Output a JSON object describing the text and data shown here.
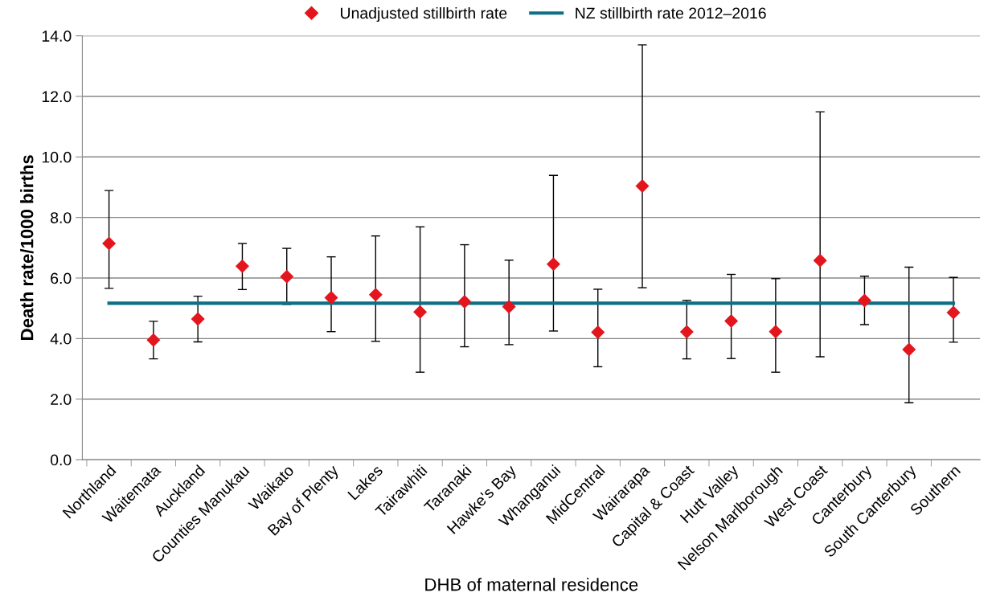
{
  "chart_data": {
    "type": "scatter",
    "xlabel": "DHB of maternal residence",
    "ylabel": "Death rate/1000 births",
    "categories": [
      "Northland",
      "Waitemata",
      "Auckland",
      "Counties Manukau",
      "Waikato",
      "Bay of Plenty",
      "Lakes",
      "Tairawhiti",
      "Taranaki",
      "Hawke's Bay",
      "Whanganui",
      "MidCentral",
      "Wairarapa",
      "Capital & Coast",
      "Hutt Valley",
      "Nelson Marlborough",
      "West Coast",
      "Canterbury",
      "South Canterbury",
      "Southern"
    ],
    "series": [
      {
        "name": "Unadjusted stillbirth rate",
        "color": "#e3161e",
        "marker": "diamond",
        "values": [
          7.14,
          3.95,
          4.65,
          6.39,
          6.05,
          5.35,
          5.45,
          4.88,
          5.22,
          5.05,
          6.46,
          4.21,
          9.04,
          4.22,
          4.58,
          4.23,
          6.58,
          5.26,
          3.64,
          4.86
        ],
        "errors": [
          [
            5.66,
            8.89
          ],
          [
            3.33,
            4.57
          ],
          [
            3.89,
            5.4
          ],
          [
            5.62,
            7.14
          ],
          [
            5.13,
            6.98
          ],
          [
            4.23,
            6.7
          ],
          [
            3.91,
            7.39
          ],
          [
            2.89,
            7.69
          ],
          [
            3.73,
            7.1
          ],
          [
            3.8,
            6.59
          ],
          [
            4.25,
            9.39
          ],
          [
            3.07,
            5.63
          ],
          [
            5.68,
            13.7
          ],
          [
            3.33,
            5.26
          ],
          [
            3.34,
            6.12
          ],
          [
            2.89,
            5.98
          ],
          [
            3.4,
            11.49
          ],
          [
            4.46,
            6.06
          ],
          [
            1.88,
            6.36
          ],
          [
            3.88,
            6.02
          ]
        ]
      },
      {
        "name": "NZ stillbirth rate 2012–2016",
        "type": "line",
        "color": "#0e6f86",
        "marker": "none",
        "values": [
          5.17,
          5.17,
          5.17,
          5.17,
          5.17,
          5.17,
          5.17,
          5.17,
          5.17,
          5.17,
          5.17,
          5.17,
          5.17,
          5.17,
          5.17,
          5.17,
          5.17,
          5.17,
          5.17,
          5.17
        ]
      }
    ],
    "ylim": [
      0,
      14
    ],
    "yticks": [
      {
        "value": 0,
        "label": "0.0"
      },
      {
        "value": 2,
        "label": "2.0"
      },
      {
        "value": 4,
        "label": "4.0"
      },
      {
        "value": 6,
        "label": "6.0"
      },
      {
        "value": 8,
        "label": "8.0"
      },
      {
        "value": 10,
        "label": "10.0"
      },
      {
        "value": 12,
        "label": "12.0"
      },
      {
        "value": 14,
        "label": "14.0"
      }
    ],
    "grid": "y",
    "legend": "top"
  }
}
